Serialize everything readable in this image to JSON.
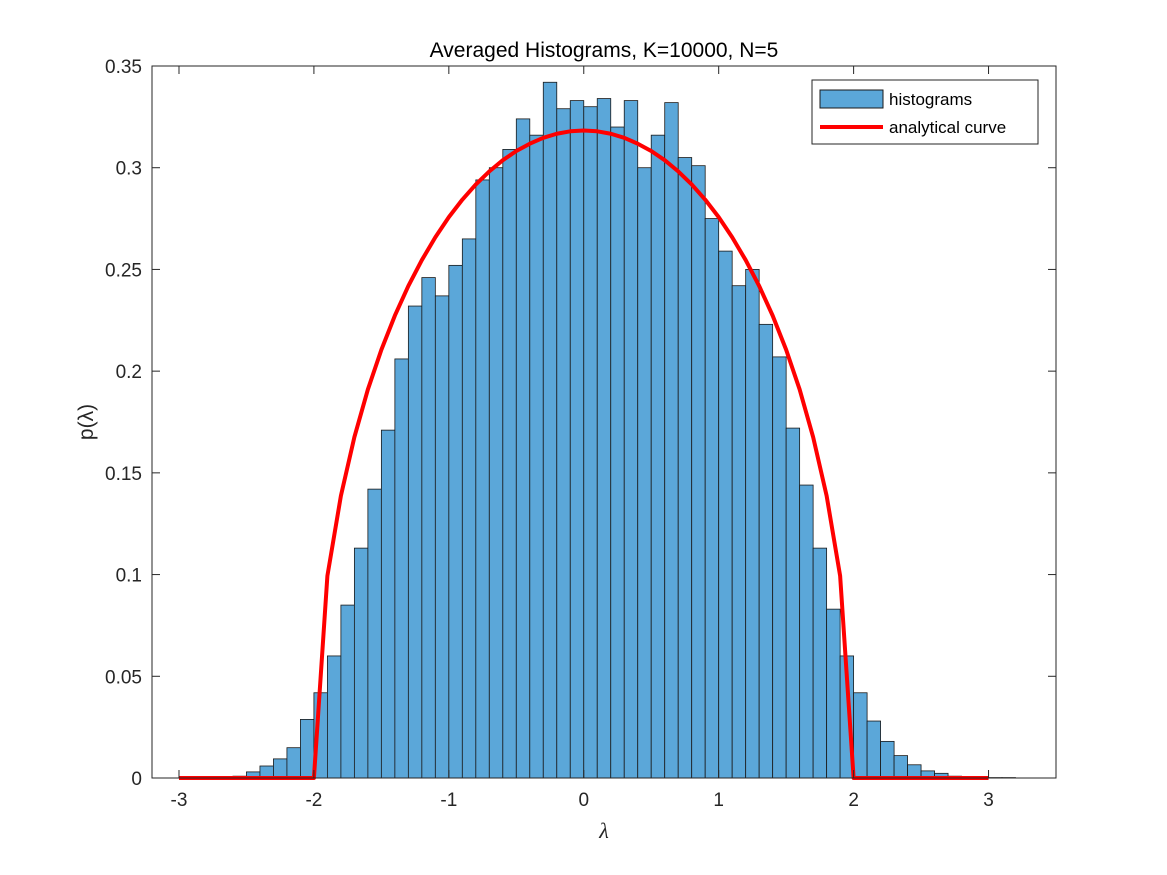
{
  "chart_data": {
    "type": "bar",
    "title": "Averaged Histograms, K=10000, N=5",
    "xlabel": "λ",
    "ylabel": "p(λ)",
    "xlim": [
      -3.2,
      3.5
    ],
    "ylim": [
      0,
      0.35
    ],
    "xticks": [
      -3,
      -2,
      -1,
      0,
      1,
      2,
      3
    ],
    "yticks": [
      0,
      0.05,
      0.1,
      0.15,
      0.2,
      0.25,
      0.3,
      0.35
    ],
    "grid": false,
    "legend_position": "top-right",
    "bin_width": 0.1,
    "histogram": {
      "name": "histograms",
      "color": "#5ba7d9",
      "edge_color": "#1a1a1a",
      "bin_left_edges": [
        -3.0,
        -2.9,
        -2.8,
        -2.7,
        -2.6,
        -2.5,
        -2.4,
        -2.3,
        -2.2,
        -2.1,
        -2.0,
        -1.9,
        -1.8,
        -1.7,
        -1.6,
        -1.5,
        -1.4,
        -1.3,
        -1.2,
        -1.1,
        -1.0,
        -0.9,
        -0.8,
        -0.7,
        -0.6,
        -0.5,
        -0.4,
        -0.3,
        -0.2,
        -0.1,
        0.0,
        0.1,
        0.2,
        0.3,
        0.4,
        0.5,
        0.6,
        0.7,
        0.8,
        0.9,
        1.0,
        1.1,
        1.2,
        1.3,
        1.4,
        1.5,
        1.6,
        1.7,
        1.8,
        1.9,
        2.0,
        2.1,
        2.2,
        2.3,
        2.4,
        2.5,
        2.6,
        2.7,
        2.8,
        2.9,
        3.0,
        3.1
      ],
      "values": [
        0.0002,
        0.0002,
        0.0007,
        0.0007,
        0.0009,
        0.003,
        0.0059,
        0.0094,
        0.0149,
        0.0288,
        0.0419,
        0.06,
        0.085,
        0.113,
        0.142,
        0.171,
        0.206,
        0.232,
        0.246,
        0.237,
        0.252,
        0.265,
        0.294,
        0.3,
        0.309,
        0.324,
        0.316,
        0.342,
        0.329,
        0.333,
        0.33,
        0.334,
        0.32,
        0.333,
        0.3,
        0.316,
        0.332,
        0.305,
        0.301,
        0.275,
        0.259,
        0.242,
        0.25,
        0.223,
        0.207,
        0.172,
        0.144,
        0.113,
        0.083,
        0.06,
        0.0419,
        0.028,
        0.018,
        0.011,
        0.0065,
        0.0035,
        0.0023,
        0.0009,
        0.0005,
        0.0002,
        0.0002,
        0.0002
      ]
    },
    "curve": {
      "name": "analytical curve",
      "color": "#ff0000",
      "x": [
        -3.0,
        -2.9,
        -2.8,
        -2.7,
        -2.6,
        -2.5,
        -2.4,
        -2.3,
        -2.2,
        -2.1,
        -2.0,
        -1.9,
        -1.8,
        -1.7,
        -1.6,
        -1.5,
        -1.4,
        -1.3,
        -1.2,
        -1.1,
        -1.0,
        -0.9,
        -0.8,
        -0.7,
        -0.6,
        -0.5,
        -0.4,
        -0.3,
        -0.2,
        -0.1,
        0.0,
        0.1,
        0.2,
        0.3,
        0.4,
        0.5,
        0.6,
        0.7,
        0.8,
        0.9,
        1.0,
        1.1,
        1.2,
        1.3,
        1.4,
        1.5,
        1.6,
        1.7,
        1.8,
        1.9,
        2.0,
        2.1,
        2.2,
        2.3,
        2.4,
        2.5,
        2.6,
        2.7,
        2.8,
        2.9,
        3.0
      ],
      "y": [
        0,
        0,
        0,
        0,
        0,
        0,
        0,
        0,
        0,
        0,
        0,
        0.0994,
        0.1387,
        0.1676,
        0.191,
        0.2105,
        0.2273,
        0.2419,
        0.2546,
        0.2658,
        0.2757,
        0.2843,
        0.2918,
        0.2982,
        0.3037,
        0.3082,
        0.3118,
        0.3147,
        0.3167,
        0.3179,
        0.3183,
        0.3179,
        0.3167,
        0.3147,
        0.3118,
        0.3082,
        0.3037,
        0.2982,
        0.2918,
        0.2843,
        0.2757,
        0.2658,
        0.2546,
        0.2419,
        0.2273,
        0.2105,
        0.191,
        0.1676,
        0.1387,
        0.0994,
        0,
        0,
        0,
        0,
        0,
        0,
        0,
        0,
        0,
        0,
        0
      ]
    }
  }
}
